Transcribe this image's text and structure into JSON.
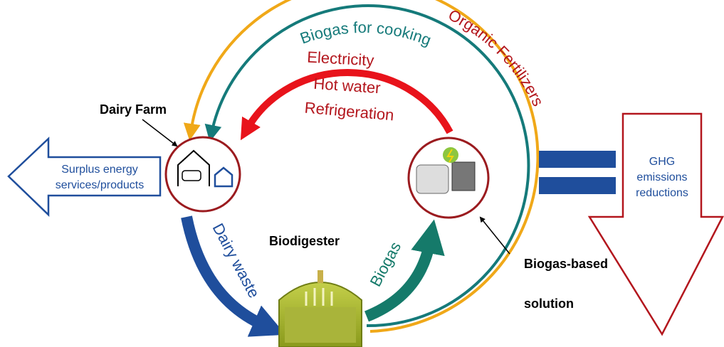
{
  "flows": {
    "organic_fertilizers": "Organic Fertilizers",
    "biogas_for_cooking": "Biogas for cooking",
    "electricity": "Electricity",
    "hot_water": "Hot water",
    "refrigeration": "Refrigeration",
    "dairy_waste": "Dairy waste",
    "biogas": "Biogas"
  },
  "nodes": {
    "dairy_farm": "Dairy Farm",
    "biodigester": "Biodigester",
    "solution": [
      "Biogas-based",
      "solution"
    ]
  },
  "outputs": {
    "surplus": [
      "Surplus energy",
      "services/products"
    ],
    "ghg": [
      "GHG",
      "emissions",
      "reductions"
    ]
  }
}
